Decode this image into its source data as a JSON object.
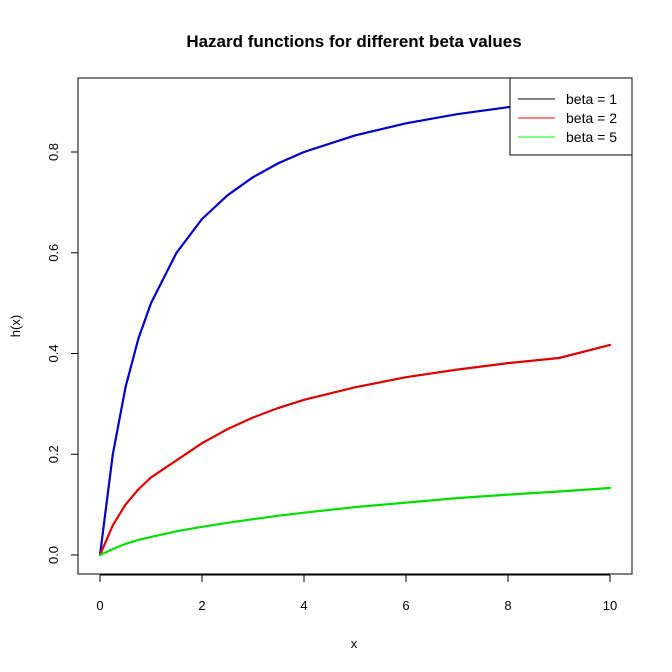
{
  "chart_data": {
    "type": "line",
    "title": "Hazard functions for different beta values",
    "xlabel": "x",
    "ylabel": "h(x)",
    "xlim": [
      0,
      10
    ],
    "ylim": [
      0,
      0.9
    ],
    "x_ticks": [
      0,
      2,
      4,
      6,
      8,
      10
    ],
    "x_tick_labels": [
      "0",
      "2",
      "4",
      "6",
      "8",
      "10"
    ],
    "y_ticks": [
      0.0,
      0.2,
      0.4,
      0.6,
      0.8
    ],
    "y_tick_labels": [
      "0.0",
      "0.2",
      "0.4",
      "0.6",
      "0.8"
    ],
    "grid": false,
    "legend_position": "top-right",
    "legend_line_colors": [
      "#000000",
      "#ff0000",
      "#00ff00"
    ],
    "x": [
      0,
      0.25,
      0.5,
      0.75,
      1,
      1.5,
      2,
      2.5,
      3,
      3.5,
      4,
      5,
      6,
      7,
      8,
      9,
      10
    ],
    "series": [
      {
        "name": "beta = 1",
        "color": "#0000cc",
        "values": [
          0,
          0.2,
          0.333,
          0.429,
          0.5,
          0.6,
          0.667,
          0.714,
          0.75,
          0.778,
          0.8,
          0.833,
          0.857,
          0.875,
          0.889,
          0.9,
          0.909
        ]
      },
      {
        "name": "beta = 2",
        "color": "#dd0000",
        "values": [
          0,
          0.059,
          0.1,
          0.13,
          0.154,
          0.188,
          0.222,
          0.25,
          0.273,
          0.292,
          0.308,
          0.333,
          0.353,
          0.368,
          0.381,
          0.391,
          0.417
        ]
      },
      {
        "name": "beta = 5",
        "color": "#00dd00",
        "values": [
          0,
          0.012,
          0.022,
          0.03,
          0.036,
          0.047,
          0.056,
          0.064,
          0.071,
          0.078,
          0.084,
          0.095,
          0.104,
          0.113,
          0.12,
          0.126,
          0.133
        ]
      }
    ]
  }
}
